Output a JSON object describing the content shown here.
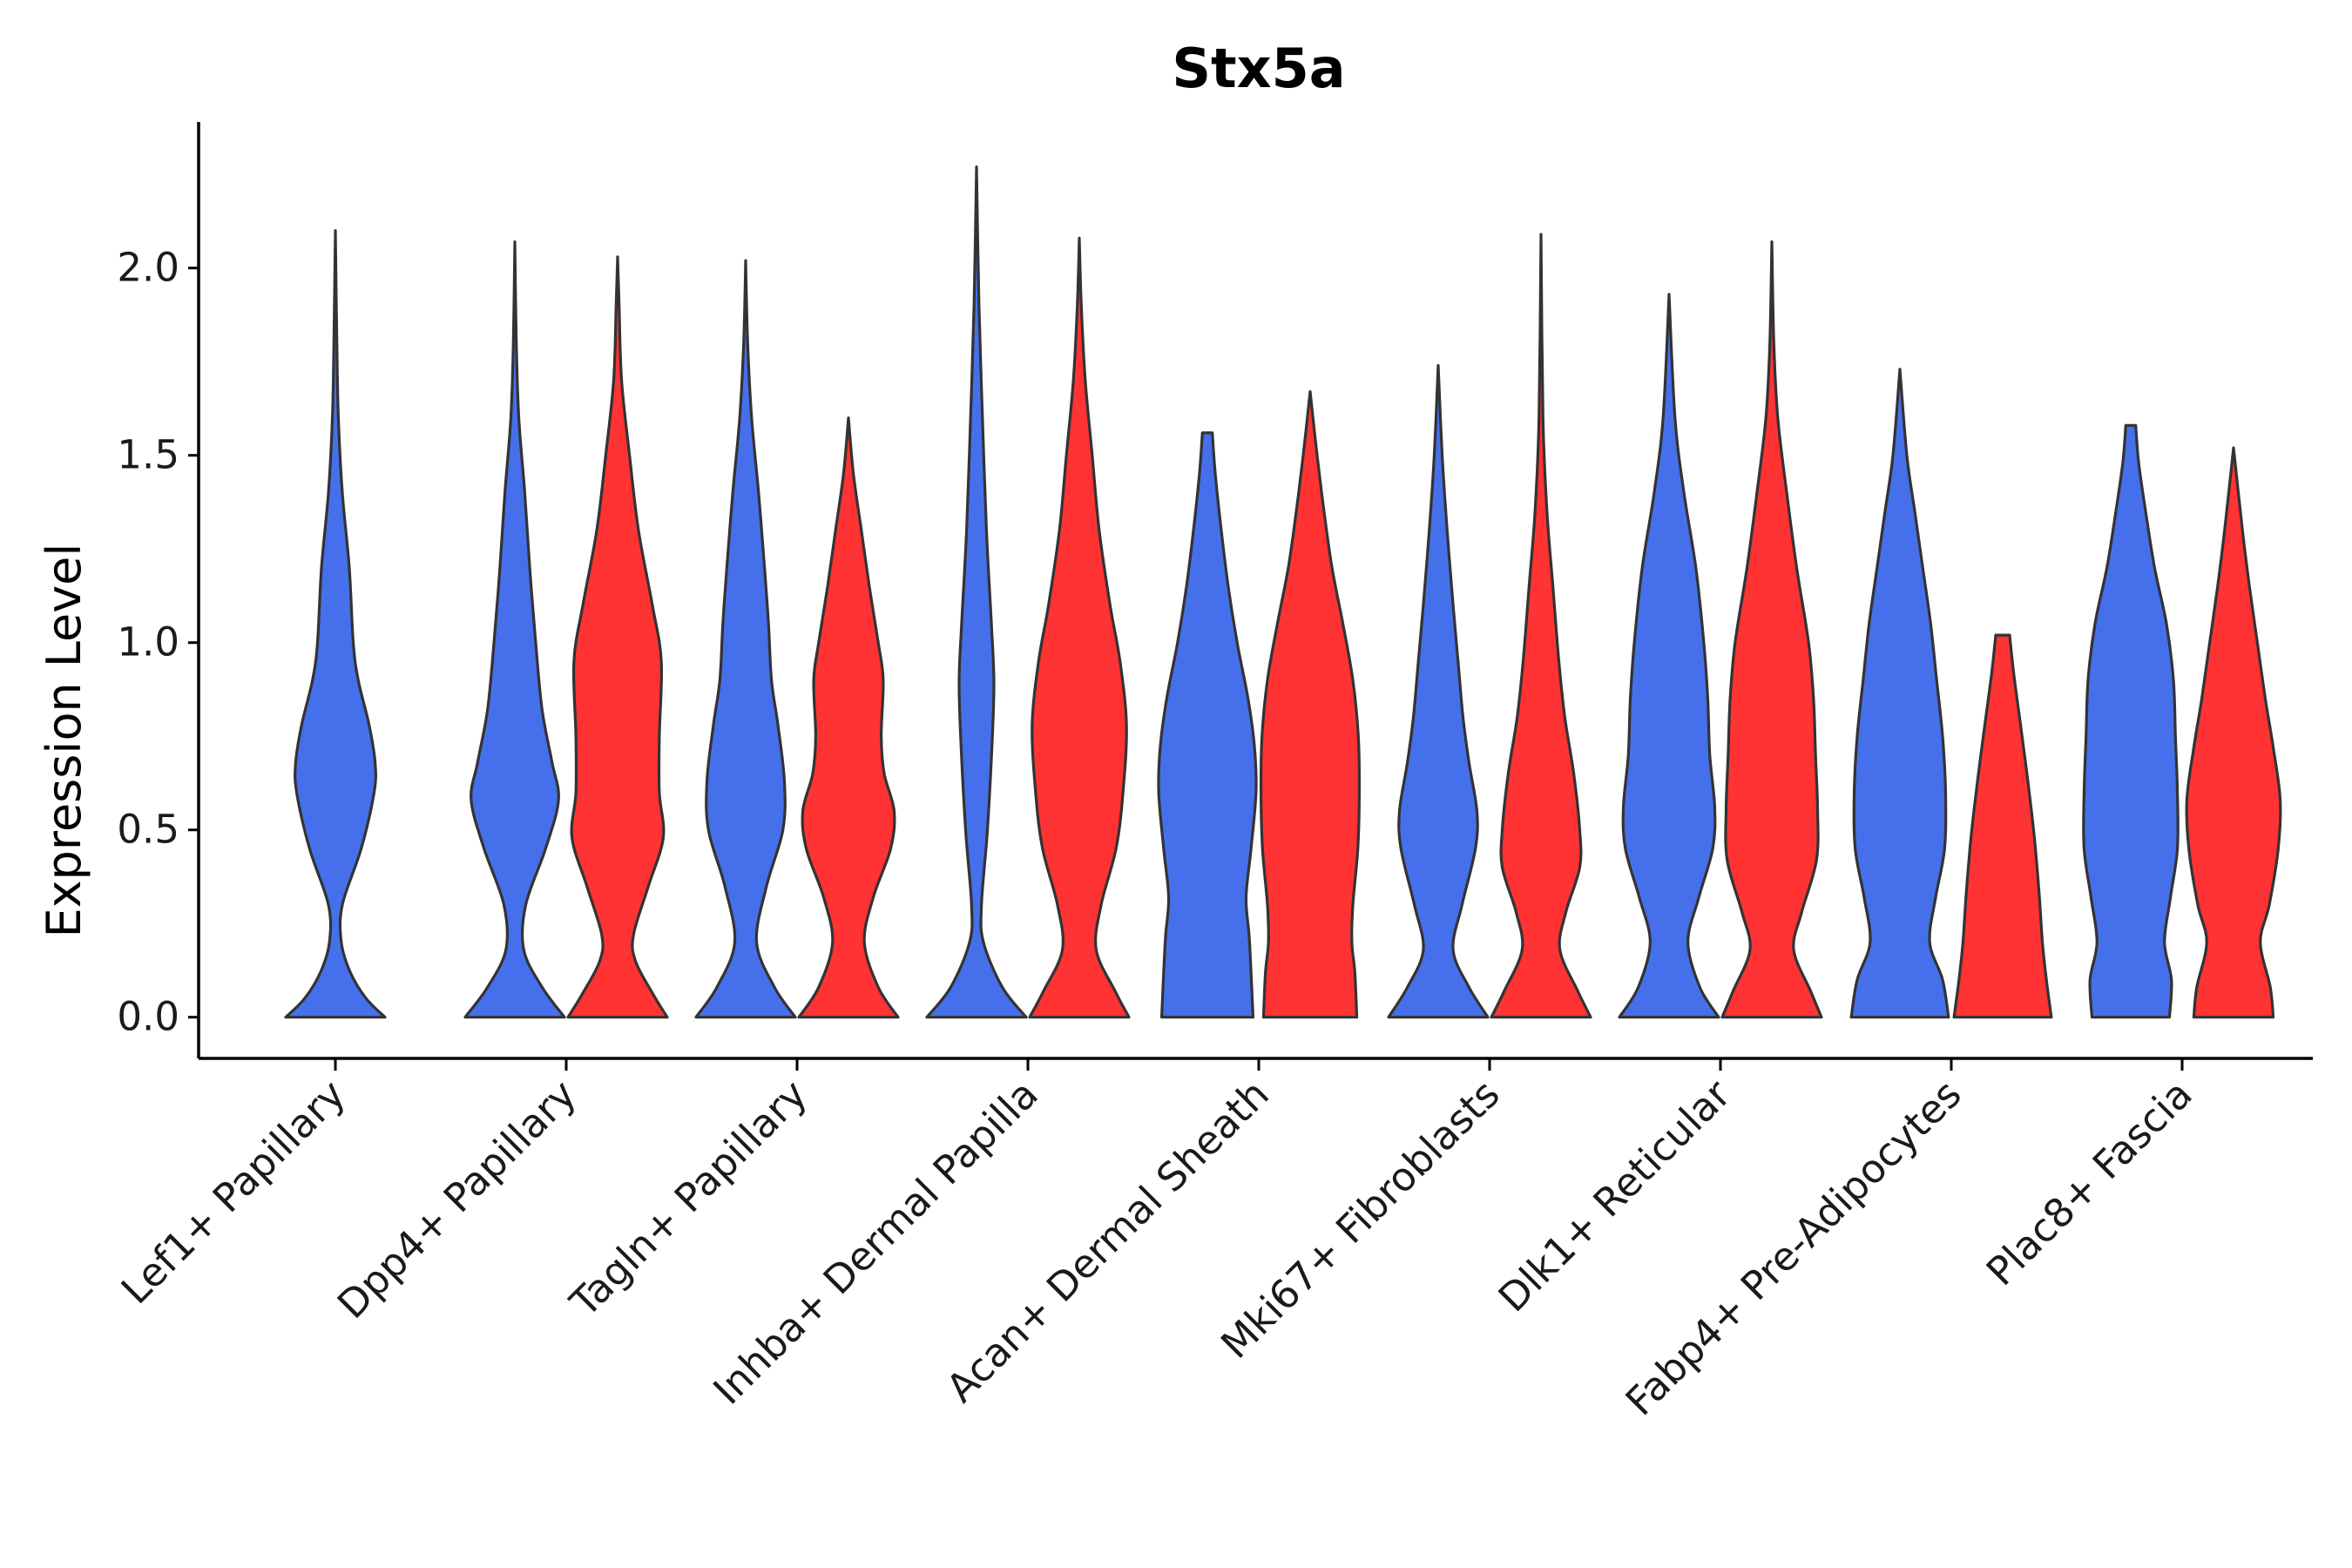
{
  "chart_data": {
    "type": "violin",
    "title": "Stx5a",
    "xlabel": "",
    "ylabel": "Expression Level",
    "ylim": [
      -0.11,
      2.39
    ],
    "yticks": [
      0.0,
      0.5,
      1.0,
      1.5,
      2.0
    ],
    "ytick_labels": [
      "0.0",
      "0.5",
      "1.0",
      "1.5",
      "2.0"
    ],
    "legend": "none",
    "series_colors": [
      "#4670EB",
      "#FF3333"
    ],
    "categories": [
      "Lef1+ Papillary",
      "Dpp4+ Papillary",
      "Tagln+ Papillary",
      "Inhba+ Dermal Papilla",
      "Acan+ Dermal Sheath",
      "Mki67+ Fibroblasts",
      "Dlk1+ Reticular",
      "Fabp4+ Pre-Adipocytes",
      "Plac8+ Fascia"
    ],
    "violins": [
      {
        "category": "Lef1+ Papillary",
        "group": 1,
        "max": 2.1,
        "profile": [
          [
            0,
            1
          ],
          [
            0.05,
            0.62
          ],
          [
            0.12,
            0.3
          ],
          [
            0.2,
            0.12
          ],
          [
            0.3,
            0.14
          ],
          [
            0.45,
            0.52
          ],
          [
            0.6,
            0.78
          ],
          [
            0.68,
            0.8
          ],
          [
            0.78,
            0.68
          ],
          [
            0.9,
            0.46
          ],
          [
            1.0,
            0.36
          ],
          [
            1.2,
            0.28
          ],
          [
            1.4,
            0.14
          ],
          [
            1.6,
            0.06
          ],
          [
            1.8,
            0.03
          ],
          [
            2.1,
            0
          ]
        ]
      },
      {
        "category": "Dpp4+ Papillary",
        "group": 1,
        "max": 2.07,
        "profile": [
          [
            0,
            1
          ],
          [
            0.08,
            0.55
          ],
          [
            0.18,
            0.18
          ],
          [
            0.3,
            0.22
          ],
          [
            0.45,
            0.62
          ],
          [
            0.58,
            0.88
          ],
          [
            0.68,
            0.75
          ],
          [
            0.82,
            0.55
          ],
          [
            1.0,
            0.42
          ],
          [
            1.2,
            0.3
          ],
          [
            1.4,
            0.2
          ],
          [
            1.6,
            0.08
          ],
          [
            1.8,
            0.03
          ],
          [
            2.07,
            0
          ]
        ]
      },
      {
        "category": "Dpp4+ Papillary",
        "group": 2,
        "max": 2.03,
        "profile": [
          [
            0,
            1
          ],
          [
            0.06,
            0.72
          ],
          [
            0.15,
            0.36
          ],
          [
            0.22,
            0.32
          ],
          [
            0.35,
            0.62
          ],
          [
            0.48,
            0.92
          ],
          [
            0.6,
            0.84
          ],
          [
            0.75,
            0.84
          ],
          [
            0.95,
            0.88
          ],
          [
            1.1,
            0.7
          ],
          [
            1.3,
            0.42
          ],
          [
            1.5,
            0.24
          ],
          [
            1.7,
            0.08
          ],
          [
            1.9,
            0.03
          ],
          [
            2.03,
            0
          ]
        ]
      },
      {
        "category": "Tagln+ Papillary",
        "group": 1,
        "max": 2.02,
        "profile": [
          [
            0,
            1
          ],
          [
            0.08,
            0.58
          ],
          [
            0.2,
            0.22
          ],
          [
            0.35,
            0.42
          ],
          [
            0.5,
            0.75
          ],
          [
            0.63,
            0.78
          ],
          [
            0.78,
            0.65
          ],
          [
            0.9,
            0.52
          ],
          [
            1.05,
            0.46
          ],
          [
            1.2,
            0.38
          ],
          [
            1.4,
            0.26
          ],
          [
            1.6,
            0.12
          ],
          [
            1.8,
            0.04
          ],
          [
            2.02,
            0
          ]
        ]
      },
      {
        "category": "Tagln+ Papillary",
        "group": 2,
        "max": 1.6,
        "profile": [
          [
            0,
            1
          ],
          [
            0.08,
            0.6
          ],
          [
            0.2,
            0.32
          ],
          [
            0.32,
            0.5
          ],
          [
            0.45,
            0.85
          ],
          [
            0.55,
            0.92
          ],
          [
            0.65,
            0.72
          ],
          [
            0.75,
            0.66
          ],
          [
            0.9,
            0.7
          ],
          [
            1.0,
            0.6
          ],
          [
            1.15,
            0.42
          ],
          [
            1.3,
            0.26
          ],
          [
            1.45,
            0.1
          ],
          [
            1.6,
            0
          ]
        ]
      },
      {
        "category": "Inhba+ Dermal Papilla",
        "group": 1,
        "max": 2.27,
        "profile": [
          [
            0,
            1
          ],
          [
            0.08,
            0.52
          ],
          [
            0.2,
            0.14
          ],
          [
            0.3,
            0.1
          ],
          [
            0.5,
            0.22
          ],
          [
            0.75,
            0.32
          ],
          [
            0.9,
            0.35
          ],
          [
            1.05,
            0.3
          ],
          [
            1.3,
            0.2
          ],
          [
            1.6,
            0.12
          ],
          [
            1.9,
            0.05
          ],
          [
            2.27,
            0
          ]
        ]
      },
      {
        "category": "Inhba+ Dermal Papilla",
        "group": 2,
        "max": 2.08,
        "profile": [
          [
            0,
            1
          ],
          [
            0.07,
            0.72
          ],
          [
            0.18,
            0.34
          ],
          [
            0.3,
            0.44
          ],
          [
            0.45,
            0.74
          ],
          [
            0.6,
            0.88
          ],
          [
            0.78,
            0.95
          ],
          [
            0.95,
            0.82
          ],
          [
            1.1,
            0.62
          ],
          [
            1.3,
            0.4
          ],
          [
            1.5,
            0.26
          ],
          [
            1.7,
            0.12
          ],
          [
            1.9,
            0.04
          ],
          [
            2.08,
            0
          ]
        ]
      },
      {
        "category": "Acan+ Dermal Sheath",
        "group": 1,
        "max": 1.56,
        "profile": [
          [
            0,
            0.92
          ],
          [
            0.12,
            0.88
          ],
          [
            0.22,
            0.84
          ],
          [
            0.32,
            0.78
          ],
          [
            0.45,
            0.88
          ],
          [
            0.6,
            0.98
          ],
          [
            0.72,
            0.95
          ],
          [
            0.85,
            0.82
          ],
          [
            1.0,
            0.6
          ],
          [
            1.15,
            0.42
          ],
          [
            1.3,
            0.28
          ],
          [
            1.45,
            0.16
          ],
          [
            1.56,
            0.1
          ]
        ]
      },
      {
        "category": "Acan+ Dermal Sheath",
        "group": 2,
        "max": 1.67,
        "profile": [
          [
            0,
            0.94
          ],
          [
            0.12,
            0.9
          ],
          [
            0.2,
            0.84
          ],
          [
            0.3,
            0.86
          ],
          [
            0.45,
            0.96
          ],
          [
            0.6,
            0.99
          ],
          [
            0.75,
            0.97
          ],
          [
            0.9,
            0.86
          ],
          [
            1.05,
            0.66
          ],
          [
            1.2,
            0.44
          ],
          [
            1.35,
            0.28
          ],
          [
            1.5,
            0.14
          ],
          [
            1.67,
            0
          ]
        ]
      },
      {
        "category": "Mki67+ Fibroblasts",
        "group": 1,
        "max": 1.74,
        "profile": [
          [
            0,
            1
          ],
          [
            0.08,
            0.62
          ],
          [
            0.18,
            0.3
          ],
          [
            0.3,
            0.48
          ],
          [
            0.45,
            0.75
          ],
          [
            0.55,
            0.78
          ],
          [
            0.68,
            0.62
          ],
          [
            0.8,
            0.5
          ],
          [
            0.95,
            0.4
          ],
          [
            1.1,
            0.3
          ],
          [
            1.3,
            0.18
          ],
          [
            1.5,
            0.08
          ],
          [
            1.74,
            0
          ]
        ]
      },
      {
        "category": "Mki67+ Fibroblasts",
        "group": 2,
        "max": 2.09,
        "profile": [
          [
            0,
            1
          ],
          [
            0.07,
            0.74
          ],
          [
            0.18,
            0.38
          ],
          [
            0.28,
            0.5
          ],
          [
            0.4,
            0.78
          ],
          [
            0.5,
            0.78
          ],
          [
            0.65,
            0.66
          ],
          [
            0.8,
            0.48
          ],
          [
            0.95,
            0.36
          ],
          [
            1.15,
            0.24
          ],
          [
            1.35,
            0.12
          ],
          [
            1.6,
            0.04
          ],
          [
            2.09,
            0
          ]
        ]
      },
      {
        "category": "Dlk1+ Reticular",
        "group": 1,
        "max": 1.93,
        "profile": [
          [
            0,
            1
          ],
          [
            0.08,
            0.62
          ],
          [
            0.2,
            0.38
          ],
          [
            0.32,
            0.6
          ],
          [
            0.45,
            0.88
          ],
          [
            0.56,
            0.92
          ],
          [
            0.7,
            0.82
          ],
          [
            0.85,
            0.78
          ],
          [
            1.0,
            0.7
          ],
          [
            1.2,
            0.54
          ],
          [
            1.4,
            0.3
          ],
          [
            1.6,
            0.12
          ],
          [
            1.93,
            0
          ]
        ]
      },
      {
        "category": "Dlk1+ Reticular",
        "group": 2,
        "max": 2.07,
        "profile": [
          [
            0,
            1
          ],
          [
            0.07,
            0.78
          ],
          [
            0.18,
            0.44
          ],
          [
            0.28,
            0.6
          ],
          [
            0.42,
            0.9
          ],
          [
            0.56,
            0.92
          ],
          [
            0.7,
            0.88
          ],
          [
            0.85,
            0.84
          ],
          [
            1.0,
            0.74
          ],
          [
            1.2,
            0.5
          ],
          [
            1.4,
            0.3
          ],
          [
            1.6,
            0.12
          ],
          [
            1.8,
            0.04
          ],
          [
            2.07,
            0
          ]
        ]
      },
      {
        "category": "Fabp4+ Pre-Adipocytes",
        "group": 1,
        "max": 1.73,
        "profile": [
          [
            0,
            0.98
          ],
          [
            0.1,
            0.86
          ],
          [
            0.2,
            0.6
          ],
          [
            0.32,
            0.72
          ],
          [
            0.45,
            0.9
          ],
          [
            0.6,
            0.92
          ],
          [
            0.75,
            0.86
          ],
          [
            0.9,
            0.74
          ],
          [
            1.05,
            0.62
          ],
          [
            1.2,
            0.46
          ],
          [
            1.35,
            0.3
          ],
          [
            1.5,
            0.14
          ],
          [
            1.73,
            0
          ]
        ]
      },
      {
        "category": "Fabp4+ Pre-Adipocytes",
        "group": 2,
        "max": 1.02,
        "profile": [
          [
            0,
            0.98
          ],
          [
            0.1,
            0.88
          ],
          [
            0.2,
            0.8
          ],
          [
            0.32,
            0.74
          ],
          [
            0.45,
            0.66
          ],
          [
            0.55,
            0.58
          ],
          [
            0.68,
            0.46
          ],
          [
            0.8,
            0.34
          ],
          [
            0.92,
            0.22
          ],
          [
            1.02,
            0.14
          ]
        ]
      },
      {
        "category": "Plac8+ Fascia",
        "group": 1,
        "max": 1.58,
        "profile": [
          [
            0,
            0.78
          ],
          [
            0.1,
            0.82
          ],
          [
            0.2,
            0.68
          ],
          [
            0.32,
            0.8
          ],
          [
            0.45,
            0.94
          ],
          [
            0.6,
            0.94
          ],
          [
            0.75,
            0.9
          ],
          [
            0.9,
            0.86
          ],
          [
            1.05,
            0.72
          ],
          [
            1.2,
            0.48
          ],
          [
            1.35,
            0.3
          ],
          [
            1.48,
            0.16
          ],
          [
            1.58,
            0.1
          ]
        ]
      },
      {
        "category": "Plac8+ Fascia",
        "group": 2,
        "max": 1.52,
        "profile": [
          [
            0,
            0.8
          ],
          [
            0.08,
            0.74
          ],
          [
            0.2,
            0.54
          ],
          [
            0.3,
            0.72
          ],
          [
            0.45,
            0.9
          ],
          [
            0.58,
            0.94
          ],
          [
            0.72,
            0.8
          ],
          [
            0.85,
            0.64
          ],
          [
            1.0,
            0.48
          ],
          [
            1.15,
            0.32
          ],
          [
            1.3,
            0.18
          ],
          [
            1.52,
            0
          ]
        ]
      }
    ]
  }
}
